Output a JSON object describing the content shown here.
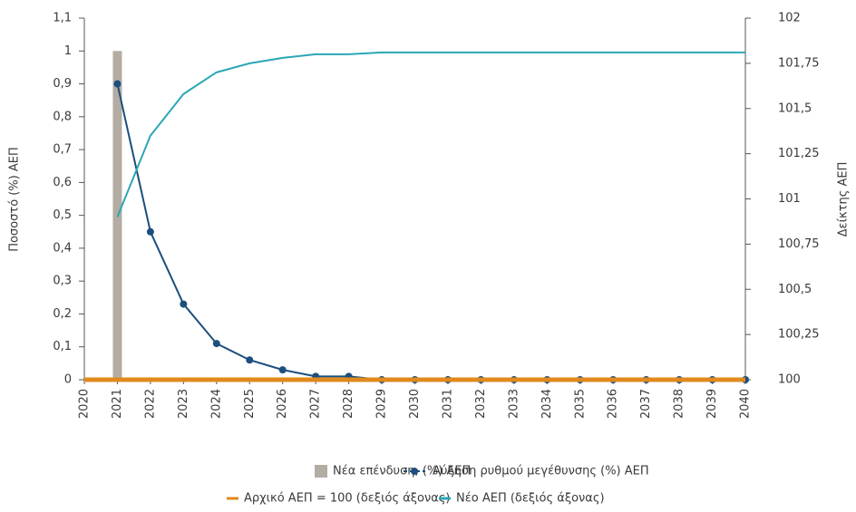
{
  "chart_data": {
    "type": "combo",
    "y_label": "Ποσοστό (%) ΑΕΠ",
    "y2_label": "Δείκτης ΑΕΠ",
    "categories": [
      "2020",
      "2021",
      "2022",
      "2023",
      "2024",
      "2025",
      "2026",
      "2027",
      "2028",
      "2029",
      "2030",
      "2031",
      "2032",
      "2033",
      "2034",
      "2035",
      "2036",
      "2037",
      "2038",
      "2039",
      "2040"
    ],
    "ylim": [
      0,
      1.1
    ],
    "yticks": [
      0,
      {
        "value": 0.1,
        "label": "0,1"
      },
      {
        "value": 0.2,
        "label": "0,2"
      },
      {
        "value": 0.3,
        "label": "0,3"
      },
      {
        "value": 0.4,
        "label": "0,4"
      },
      {
        "value": 0.5,
        "label": "0,5"
      },
      {
        "value": 0.6,
        "label": "0,6"
      },
      {
        "value": 0.7,
        "label": "0,7"
      },
      {
        "value": 0.8,
        "label": "0,8"
      },
      {
        "value": 0.9,
        "label": "0,9"
      },
      1,
      {
        "value": 1.1,
        "label": "1,1"
      }
    ],
    "y2lim": [
      100,
      102
    ],
    "y2ticks": [
      100,
      {
        "value": 100.25,
        "label": "100,25"
      },
      {
        "value": 100.5,
        "label": "100,5"
      },
      {
        "value": 100.75,
        "label": "100,75"
      },
      101,
      {
        "value": 101.25,
        "label": "101,25"
      },
      {
        "value": 101.5,
        "label": "101,5"
      },
      {
        "value": 101.75,
        "label": "101,75"
      },
      102
    ],
    "grid": false,
    "series": [
      {
        "name": "Νέα επένδυση, (%) ΑΕΠ",
        "type": "bar",
        "color": "#b3aca2",
        "values": [
          null,
          1,
          null,
          null,
          null,
          null,
          null,
          null,
          null,
          null,
          null,
          null,
          null,
          null,
          null,
          null,
          null,
          null,
          null,
          null,
          null
        ]
      },
      {
        "name": "Αύξηση ρυθμού μεγέθυνσης (%) ΑΕΠ",
        "type": "line",
        "marker": true,
        "color": "#1b4f7e",
        "values": [
          null,
          0.9,
          0.45,
          0.23,
          0.11,
          0.06,
          0.03,
          0.01,
          0.01,
          0,
          0,
          0,
          0,
          0,
          0,
          0,
          0,
          0,
          0,
          0,
          0
        ]
      },
      {
        "name": "Αρχικό ΑΕΠ = 100 (δεξιός άξονας)",
        "type": "line",
        "marker": false,
        "axis": "y2",
        "color": "#e08a1e",
        "values": [
          100,
          100,
          100,
          100,
          100,
          100,
          100,
          100,
          100,
          100,
          100,
          100,
          100,
          100,
          100,
          100,
          100,
          100,
          100,
          100,
          100
        ]
      },
      {
        "name": "Νέο ΑΕΠ (δεξιός άξονας)",
        "type": "line",
        "marker": false,
        "axis": "y2",
        "color": "#2aa7b5",
        "values": [
          null,
          100.9,
          101.35,
          101.58,
          101.7,
          101.75,
          101.78,
          101.8,
          101.8,
          101.81,
          101.81,
          101.81,
          101.81,
          101.81,
          101.81,
          101.81,
          101.81,
          101.81,
          101.81,
          101.81,
          101.81
        ]
      }
    ]
  }
}
